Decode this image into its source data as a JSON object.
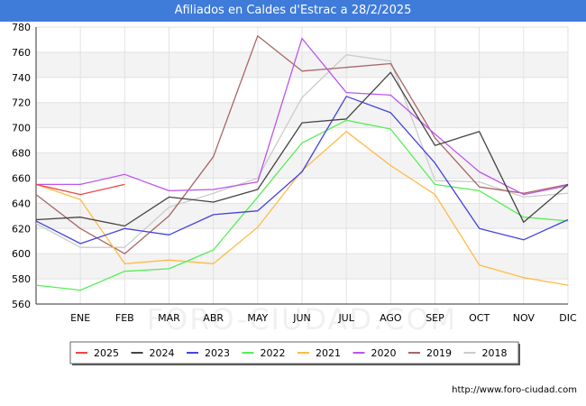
{
  "header": {
    "title": "Afiliados en Caldes d'Estrac a 28/2/2025"
  },
  "watermark": "FORO-CIUDAD.COM",
  "footer": {
    "url": "http://www.foro-ciudad.com"
  },
  "chart_data": {
    "type": "line",
    "title": "Afiliados en Caldes d'Estrac a 28/2/2025",
    "xlabel": "",
    "ylabel": "",
    "categories": [
      "",
      "ENE",
      "FEB",
      "MAR",
      "ABR",
      "MAY",
      "JUN",
      "JUL",
      "AGO",
      "SEP",
      "OCT",
      "NOV",
      "DIC"
    ],
    "ylim": [
      560,
      780
    ],
    "yticks": [
      560,
      580,
      600,
      620,
      640,
      660,
      680,
      700,
      720,
      740,
      760,
      780
    ],
    "grid": true,
    "legend_position": "bottom",
    "series": [
      {
        "name": "2018",
        "color": "#cccccc",
        "values": [
          624,
          605,
          605,
          637,
          648,
          660,
          724,
          758,
          753,
          658,
          657,
          645,
          648
        ]
      },
      {
        "name": "2019",
        "color": "#aa6666",
        "values": [
          647,
          620,
          600,
          630,
          677,
          773,
          745,
          748,
          751,
          692,
          653,
          648,
          655
        ]
      },
      {
        "name": "2020",
        "color": "#bb55ee",
        "values": [
          655,
          655,
          663,
          650,
          651,
          657,
          771,
          728,
          726,
          695,
          665,
          647,
          654
        ]
      },
      {
        "name": "2021",
        "color": "#ffbb44",
        "values": [
          655,
          643,
          592,
          595,
          592,
          621,
          666,
          697,
          670,
          647,
          591,
          581,
          575
        ]
      },
      {
        "name": "2022",
        "color": "#55ee55",
        "values": [
          575,
          571,
          586,
          588,
          603,
          645,
          688,
          706,
          699,
          655,
          650,
          629,
          626
        ]
      },
      {
        "name": "2023",
        "color": "#4444dd",
        "values": [
          626,
          608,
          620,
          615,
          631,
          634,
          665,
          725,
          712,
          672,
          620,
          611,
          627
        ]
      },
      {
        "name": "2024",
        "color": "#444444",
        "values": [
          627,
          629,
          622,
          645,
          641,
          651,
          704,
          707,
          744,
          686,
          697,
          625,
          655
        ]
      },
      {
        "name": "2025",
        "color": "#ee4444",
        "values": [
          655,
          647,
          655,
          null,
          null,
          null,
          null,
          null,
          null,
          null,
          null,
          null,
          null
        ]
      }
    ],
    "legend_order": [
      "2025",
      "2024",
      "2023",
      "2022",
      "2021",
      "2020",
      "2019",
      "2018"
    ]
  }
}
